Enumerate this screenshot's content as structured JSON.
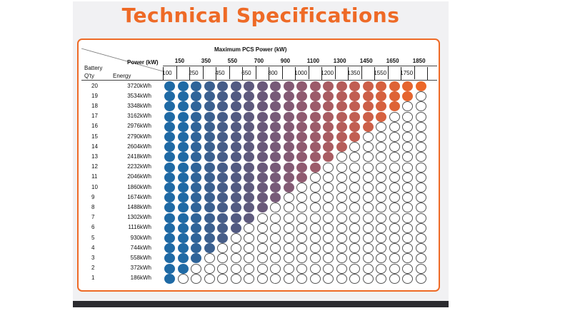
{
  "title": "Technical Specifications",
  "table": {
    "max_label": "Maximum PCS Power (kW)",
    "power_label": "Power (kW)",
    "battery_label": "Battery",
    "qty_label": "Q'ty",
    "energy_label": "Energy",
    "power_top": [
      "150",
      "350",
      "550",
      "700",
      "900",
      "1100",
      "1300",
      "1450",
      "1650",
      "1850"
    ],
    "power_bottom": [
      "100",
      "250",
      "450",
      "650",
      "800",
      "1000",
      "1200",
      "1350",
      "1550",
      "1750"
    ],
    "rows": [
      {
        "qty": "20",
        "energy": "3720kWh"
      },
      {
        "qty": "19",
        "energy": "3534kWh"
      },
      {
        "qty": "18",
        "energy": "3348kWh"
      },
      {
        "qty": "17",
        "energy": "3162kWh"
      },
      {
        "qty": "16",
        "energy": "2976kWh"
      },
      {
        "qty": "15",
        "energy": "2790kWh"
      },
      {
        "qty": "14",
        "energy": "2604kWh"
      },
      {
        "qty": "13",
        "energy": "2418kWh"
      },
      {
        "qty": "12",
        "energy": "2232kWh"
      },
      {
        "qty": "11",
        "energy": "2046kWh"
      },
      {
        "qty": "10",
        "energy": "1860kWh"
      },
      {
        "qty": "9",
        "energy": "1674kWh"
      },
      {
        "qty": "8",
        "energy": "1488kWh"
      },
      {
        "qty": "7",
        "energy": "1302kWh"
      },
      {
        "qty": "6",
        "energy": "1116kWh"
      },
      {
        "qty": "5",
        "energy": "930kWh"
      },
      {
        "qty": "4",
        "energy": "744kWh"
      },
      {
        "qty": "3",
        "energy": "558kWh"
      },
      {
        "qty": "2",
        "energy": "372kWh"
      },
      {
        "qty": "1",
        "energy": "186kWh"
      }
    ],
    "filled_counts": [
      20,
      19,
      18,
      17,
      16,
      15,
      14,
      13,
      12,
      11,
      10,
      9,
      8,
      7,
      6,
      5,
      4,
      3,
      2,
      1
    ],
    "dot_columns": 20,
    "dot_colors": [
      "#1f6aa5",
      "#1f6aa5",
      "#2f6499",
      "#3b6090",
      "#475d88",
      "#525a82",
      "#5e5a7e",
      "#6a597a",
      "#775a78",
      "#835a74",
      "#905a70",
      "#9c5b6a",
      "#a95c62",
      "#b55d5a",
      "#c15e52",
      "#cc5f48",
      "#d6613f",
      "#de6336",
      "#e5652f",
      "#ec6728"
    ],
    "empty_color": "#ffffff"
  },
  "colors": {
    "accent": "#ee6a26",
    "panel_background": "#f1f1f3",
    "bottom_bar": "#2b2b2f"
  }
}
